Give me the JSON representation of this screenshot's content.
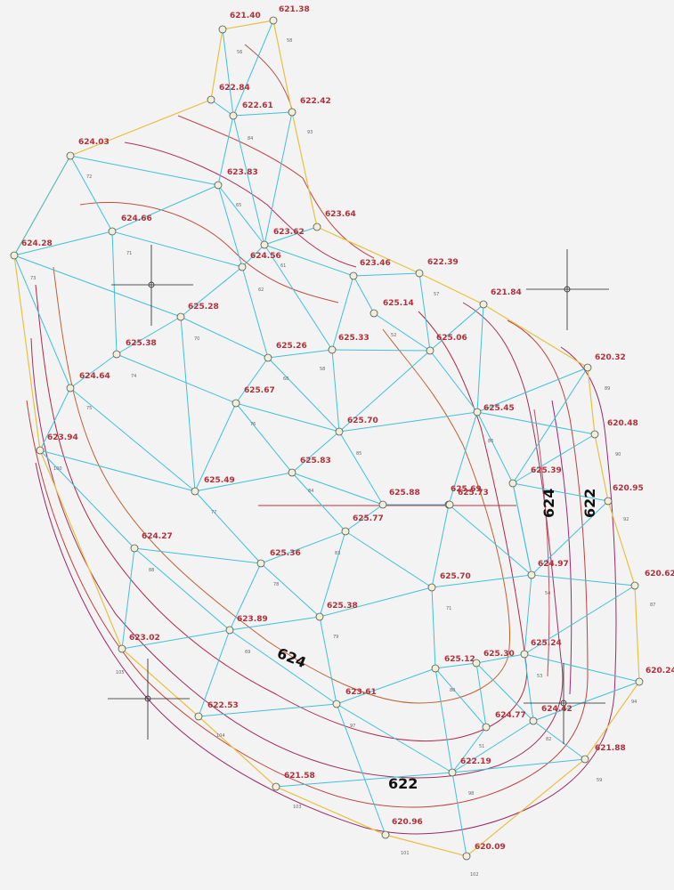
{
  "elevations": [
    "621.40",
    "621.38",
    "622.84",
    "622.61",
    "622.42",
    "624.03",
    "623.83",
    "623.64",
    "624.66",
    "623.62",
    "624.28",
    "624.56",
    "623.46",
    "622.39",
    "625.14",
    "621.84",
    "625.28",
    "625.33",
    "625.06",
    "625.38",
    "625.26",
    "620.32",
    "624.64",
    "625.67",
    "625.45",
    "625.70",
    "620.48",
    "623.94",
    "625.83",
    "625.39",
    "625.49",
    "625.88",
    "625.69",
    "625.73",
    "620.95",
    "625.77",
    "624.27",
    "625.36",
    "624.97",
    "620.62",
    "625.70",
    "625.38",
    "623.89",
    "623.02",
    "625.24",
    "625.12",
    "625.30",
    "620.24",
    "623.61",
    "622.53",
    "624.77",
    "624.42",
    "621.88",
    "622.19",
    "621.58",
    "620.96",
    "620.09"
  ],
  "contour_labels": [
    "624",
    "622",
    "624",
    "622"
  ],
  "triangle_ids": [
    "56",
    "58",
    "93",
    "84",
    "65",
    "72",
    "71",
    "73",
    "62",
    "61",
    "74",
    "75",
    "70",
    "68",
    "58",
    "52",
    "57",
    "76",
    "85",
    "86",
    "84",
    "77",
    "88",
    "78",
    "83",
    "71",
    "79",
    "69",
    "80",
    "97",
    "98",
    "104",
    "103",
    "101",
    "102",
    "105",
    "100",
    "89",
    "90",
    "92",
    "87",
    "94",
    "59",
    "54",
    "53",
    "51",
    "82"
  ]
}
